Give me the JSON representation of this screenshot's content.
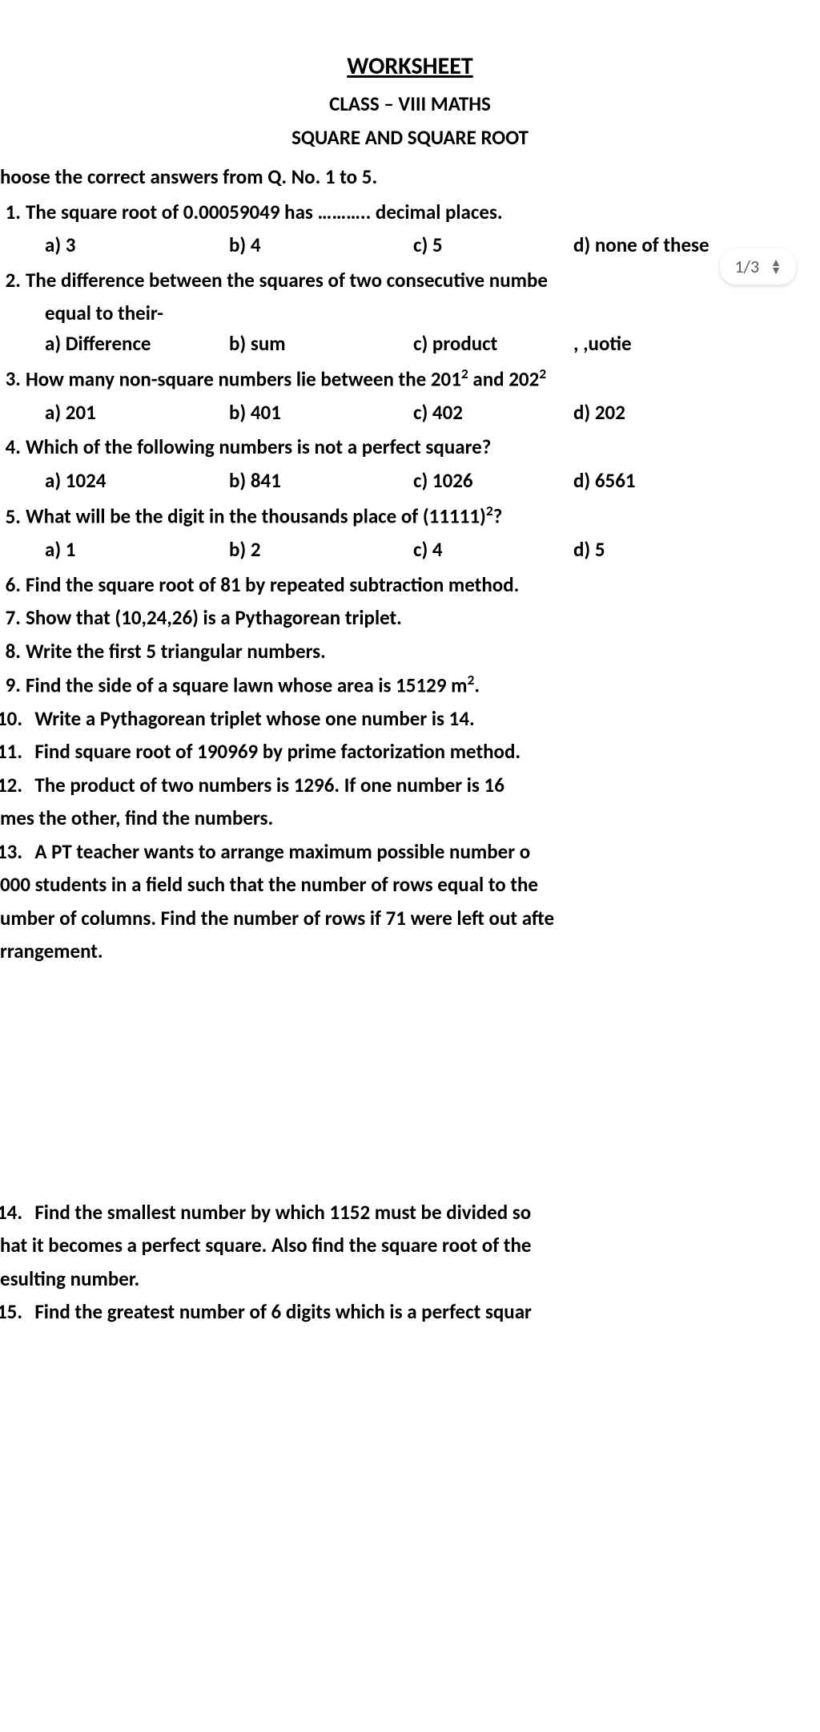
{
  "header": {
    "title": "WORKSHEET",
    "class_line": "CLASS – VIII MATHS",
    "topic": "SQUARE AND SQUARE ROOT"
  },
  "instruction": "hoose the correct answers from Q. No. 1 to 5.",
  "page_indicator": "1/3",
  "q1": {
    "num": "1.",
    "text": "The square root of 0.00059049 has ……….. decimal places.",
    "a": "a) 3",
    "b": "b) 4",
    "c": "c) 5",
    "d": "d) none of these"
  },
  "q2": {
    "num": "2.",
    "text_l1": "The difference between the squares of two consecutive numbe",
    "text_l2": "equal to their-",
    "a": "a) Difference",
    "b": "b) sum",
    "c": "c) product",
    "d": ", ,uotie"
  },
  "q3": {
    "num": "3.",
    "text_pre": "How many non-square numbers lie between the 201",
    "text_mid": " and 202",
    "a": "a) 201",
    "b": "b) 401",
    "c": "c) 402",
    "d": "d) 202"
  },
  "q4": {
    "num": "4.",
    "text": "Which of the following numbers is not a perfect square?",
    "a": "a) 1024",
    "b": "b) 841",
    "c": "c) 1026",
    "d": "d) 6561"
  },
  "q5": {
    "num": "5.",
    "text_pre": "What will be the digit in the thousands place of (11111)",
    "text_post": "?",
    "a": "a) 1",
    "b": "b) 2",
    "c": "c) 4",
    "d": "d) 5"
  },
  "q6": {
    "num": "6.",
    "text": "Find the square root of 81 by repeated subtraction method."
  },
  "q7": {
    "num": "7.",
    "text": "Show that (10,24,26) is a Pythagorean triplet."
  },
  "q8": {
    "num": "8.",
    "text": "Write the first 5 triangular numbers."
  },
  "q9": {
    "num": "9.",
    "text_pre": "Find the side of a square lawn whose area is 15129 m",
    "text_post": "."
  },
  "q10": {
    "num": "10.",
    "text": "Write a Pythagorean triplet whose one number is 14."
  },
  "q11": {
    "num": "11.",
    "text": "Find square root of 190969 by prime factorization method."
  },
  "q12": {
    "num": "12.",
    "text_l1": "The product of two numbers is 1296. If one number is 16",
    "text_l2": "mes the other, find the numbers."
  },
  "q13": {
    "num": "13.",
    "text_l1": "A PT teacher wants to arrange maximum possible number o",
    "text_l2": "000 students in a field such that the number of rows equal to the",
    "text_l3": "umber of columns. Find the number of rows if 71 were left out afte",
    "text_l4": "rrangement."
  },
  "q14": {
    "num": "14.",
    "text_l1": "Find the smallest number by which 1152 must be divided so",
    "text_l2": "hat it becomes a perfect square. Also find the square root of the",
    "text_l3": "esulting number."
  },
  "q15": {
    "num": "15.",
    "text": "Find the greatest number of 6 digits which is a perfect squar"
  }
}
